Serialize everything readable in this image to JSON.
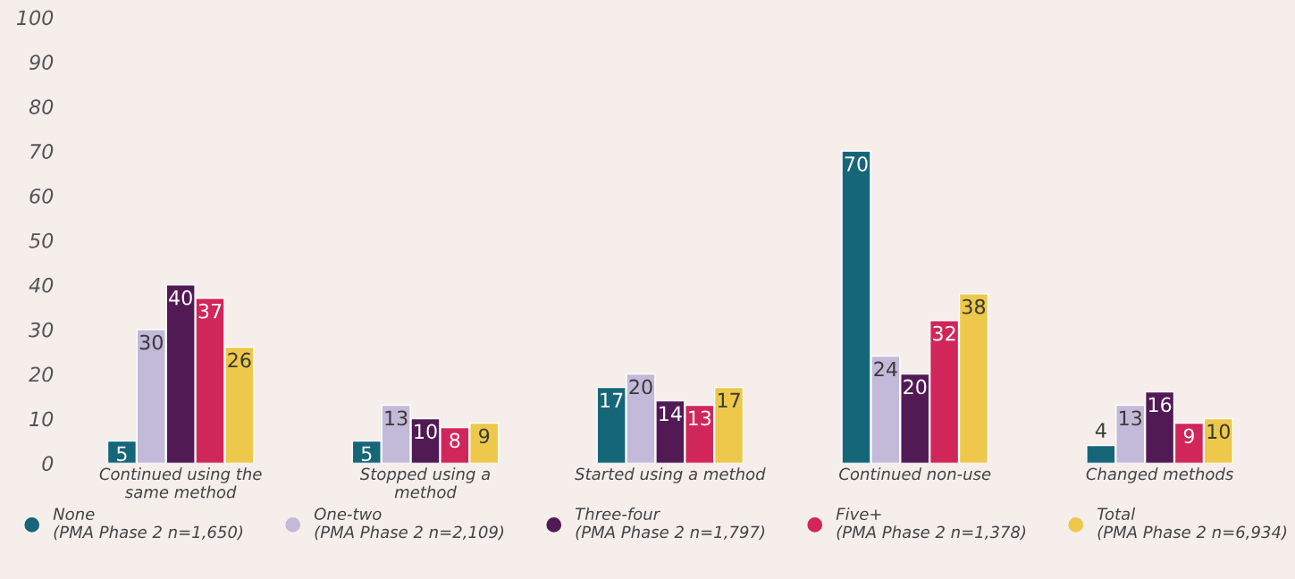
{
  "chart_data": {
    "type": "bar",
    "categories": [
      "Continued using the\nsame method",
      "Stopped using a\nmethod",
      "Started using a method",
      "Continued non-use",
      "Changed methods"
    ],
    "series": [
      {
        "name": "None\n(PMA Phase 2 n=1,650)",
        "color": "#16667a",
        "values": [
          5,
          5,
          17,
          70,
          4
        ]
      },
      {
        "name": "One-two\n(PMA Phase 2 n=2,109)",
        "color": "#c3b9d8",
        "values": [
          30,
          13,
          20,
          24,
          13
        ]
      },
      {
        "name": "Three-four\n(PMA Phase 2 n=1,797)",
        "color": "#521a55",
        "values": [
          40,
          10,
          14,
          20,
          16
        ]
      },
      {
        "name": "Five+\n(PMA Phase 2 n=1,378)",
        "color": "#d0265a",
        "values": [
          37,
          8,
          13,
          32,
          9
        ]
      },
      {
        "name": "Total\n(PMA Phase 2 n=6,934)",
        "color": "#edc84a",
        "values": [
          26,
          9,
          17,
          38,
          10
        ]
      }
    ],
    "ylim": [
      0,
      100
    ],
    "yticks": [
      0,
      10,
      20,
      30,
      40,
      50,
      60,
      70,
      80,
      90,
      100
    ],
    "data_labels": true,
    "grid": false,
    "legend": "bottom",
    "marker": "circle"
  }
}
